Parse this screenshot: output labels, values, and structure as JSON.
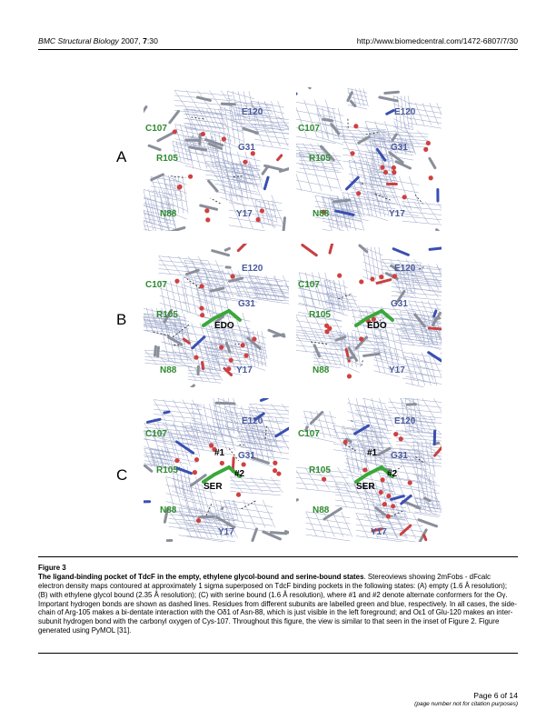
{
  "header": {
    "journal": "BMC Structural Biology",
    "year": "2007,",
    "volume": "7",
    "issue": ":30",
    "url": "http://www.biomedcentral.com/1472-6807/7/30"
  },
  "panels": [
    {
      "label": "A",
      "residues": [
        "C107",
        "E120",
        "R105",
        "G31",
        "N88",
        "Y17"
      ],
      "ligand": "",
      "alts": []
    },
    {
      "label": "B",
      "residues": [
        "C107",
        "E120",
        "R105",
        "G31",
        "N88",
        "Y17"
      ],
      "ligand": "EDO",
      "alts": []
    },
    {
      "label": "C",
      "residues": [
        "C107",
        "E120",
        "R105",
        "G31",
        "N88",
        "Y17"
      ],
      "ligand": "SER",
      "alts": [
        "#1",
        "#2"
      ]
    }
  ],
  "caption": {
    "figure_label": "Figure 3",
    "title": "The ligand-binding pocket of TdcF in the empty, ethylene glycol-bound and serine-bound states",
    "body": ". Stereoviews showing 2mFobs - dFcalc electron density maps contoured at approximately 1 sigma superposed on TdcF binding pockets in the following states: (A) empty (1.6 Å resolution); (B) with ethylene glycol bound (2.35 Å resolution); (C) with serine bound (1.6 Å resolution), where #1 and #2 denote alternate conformers for the Oγ. Important hydrogen bonds are shown as dashed lines. Residues from different subunits are labelled green and blue, respectively. In all cases, the side-chain of Arg-105 makes a bi-dentate interaction with the Oδ1 of Asn-88, which is just visible in the left foreground; and Oε1 of Glu-120 makes an inter-subunit hydrogen bond with the carbonyl oxygen of Cys-107. Throughout this figure, the view is similar to that seen in the inset of Figure 2. Figure generated using PyMOL [31]."
  },
  "footer": {
    "page": "Page 6 of 14",
    "note": "(page number not for citation purposes)"
  },
  "colors": {
    "green_label": "#2e8b2e",
    "blue_label": "#4a5a9a",
    "mesh": "#9aa4c8"
  }
}
